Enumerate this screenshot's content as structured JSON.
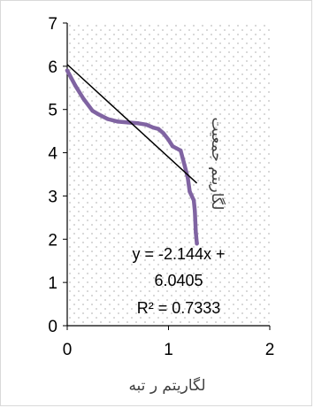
{
  "chart_data": {
    "type": "line",
    "xlabel": "لگاریتم ر تبه",
    "ylabel": "لگاریتم جمعیت",
    "xlim": [
      0,
      2
    ],
    "ylim": [
      0,
      7
    ],
    "xticks": [
      "0",
      "1",
      "2"
    ],
    "yticks": [
      "0",
      "1",
      "2",
      "3",
      "4",
      "5",
      "6",
      "7"
    ],
    "grid": false,
    "plot_area_pattern": "dotted",
    "colors": {
      "series": "#8064a2",
      "trendline": "#000000",
      "axis": "#000000"
    },
    "series": [
      {
        "x": [
          0.0,
          0.08,
          0.16,
          0.25,
          0.3,
          0.4,
          0.5,
          0.6,
          0.7,
          0.78,
          0.85,
          0.9,
          0.95,
          1.0,
          1.04,
          1.08,
          1.12,
          1.16,
          1.19,
          1.21,
          1.23,
          1.25,
          1.26,
          1.27,
          1.28
        ],
        "y": [
          5.9,
          5.55,
          5.25,
          4.97,
          4.9,
          4.78,
          4.72,
          4.7,
          4.68,
          4.65,
          4.58,
          4.55,
          4.45,
          4.3,
          4.15,
          4.1,
          4.05,
          3.7,
          3.42,
          3.1,
          3.0,
          2.9,
          2.65,
          2.15,
          1.9
        ]
      }
    ],
    "trendline": {
      "slope": -2.144,
      "intercept": 6.0405,
      "x_range": [
        0,
        1.28
      ],
      "equation_lines": [
        "y = -2.144x +",
        "6.0405"
      ],
      "r2_label": "R² = 0.7333"
    }
  }
}
